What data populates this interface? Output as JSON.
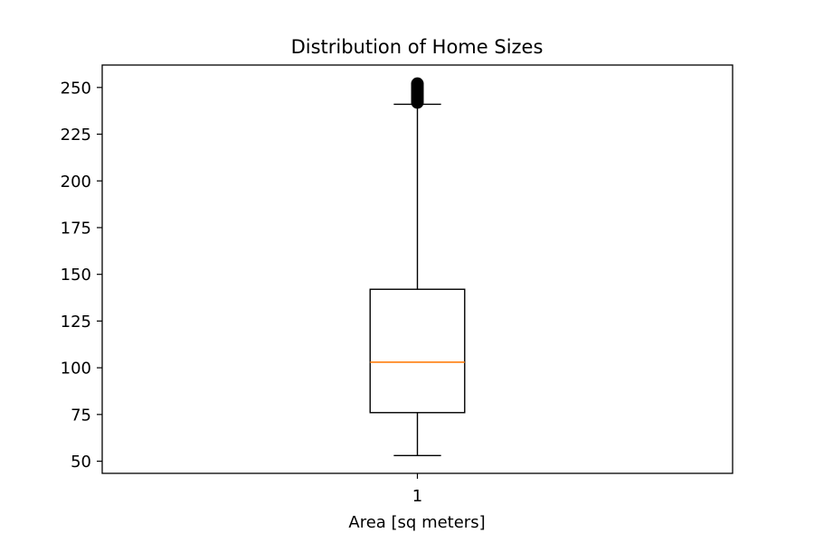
{
  "chart_data": {
    "type": "box",
    "title": "Distribution of Home Sizes",
    "xlabel": "Area [sq meters]",
    "ylabel": "",
    "categories": [
      "1"
    ],
    "ylim": [
      43.5,
      262
    ],
    "yticks": [
      50,
      75,
      100,
      125,
      150,
      175,
      200,
      225,
      250
    ],
    "boxes": [
      {
        "category": "1",
        "whisker_low": 53,
        "q1": 76,
        "median": 103,
        "q3": 142,
        "whisker_high": 241,
        "outliers": [
          242,
          243,
          244,
          245,
          246,
          247,
          248,
          249,
          250,
          251,
          252
        ]
      }
    ],
    "grid": false,
    "colors": {
      "box": "#000000",
      "median": "#ff7f0e",
      "outlier": "#000000"
    }
  }
}
